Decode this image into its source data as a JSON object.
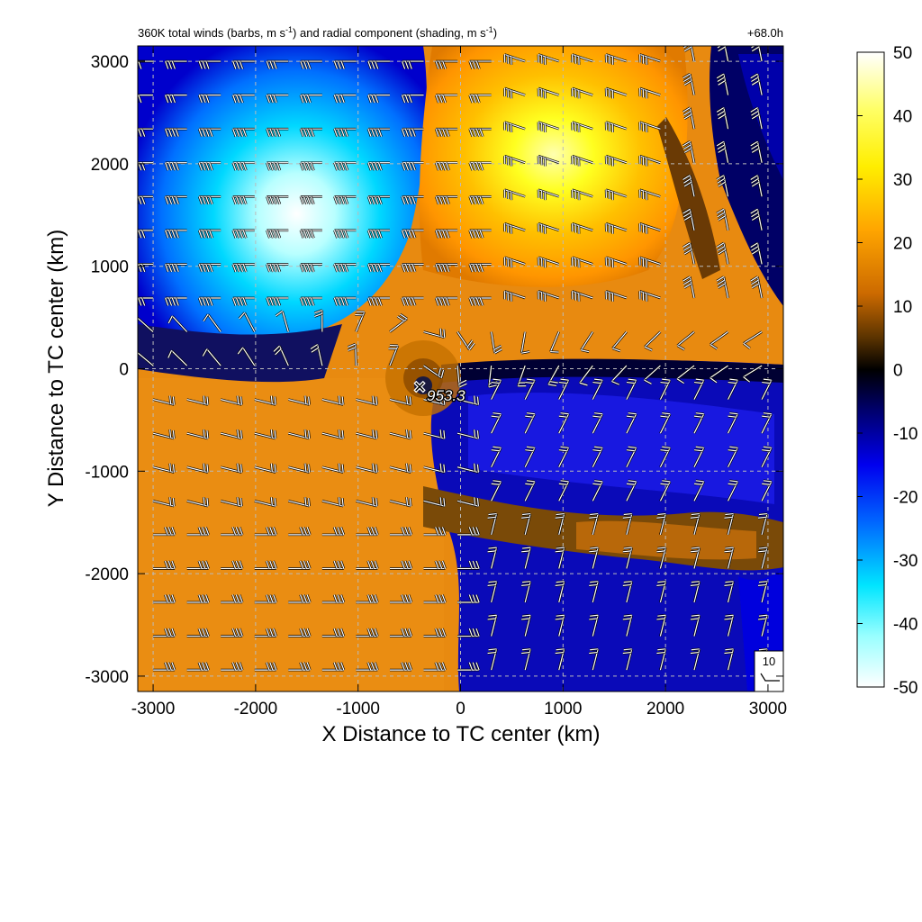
{
  "chart_data": {
    "type": "heatmap",
    "title_parts": {
      "a": "360K total winds (barbs, m s",
      "b": "-1",
      "c": ") and radial component (shading, m s",
      "d": "-1",
      "e": ")"
    },
    "valid_time": "+68.0h",
    "xlabel": "X Distance to TC center (km)",
    "ylabel": "Y Distance to TC center (km)",
    "xlim": [
      -3150,
      3150
    ],
    "ylim": [
      -3150,
      3150
    ],
    "xticks": [
      "-3000",
      "-2000",
      "-1000",
      "0",
      "1000",
      "2000",
      "3000"
    ],
    "yticks": [
      "3000",
      "2000",
      "1000",
      "0",
      "-1000",
      "-2000",
      "-3000"
    ],
    "grid": "dashed",
    "colorbar": {
      "ticks": [
        "50",
        "40",
        "30",
        "20",
        "10",
        "0",
        "-10",
        "-20",
        "-30",
        "-40",
        "-50"
      ],
      "range": [
        -50,
        50
      ],
      "colors": [
        "#ffffff",
        "#00ffff",
        "#0090ff",
        "#0000ff",
        "#000066",
        "#000000",
        "#5a3300",
        "#cc6600",
        "#ff9900",
        "#ffd000",
        "#ffff00",
        "#ffffff"
      ]
    },
    "tc_center": {
      "x": -450,
      "y": -200,
      "pressure_label": "953.3"
    },
    "barb_reference": {
      "label": "10"
    },
    "radial_field_regions": [
      {
        "sign": "negative",
        "description_x": [
          -3150,
          -500
        ],
        "description_y": [
          300,
          3150
        ],
        "peak": -45
      },
      {
        "sign": "positive",
        "description_x": [
          -300,
          2300
        ],
        "description_y": [
          200,
          3150
        ],
        "peak": 45
      },
      {
        "sign": "negative",
        "description_x": [
          -200,
          3150
        ],
        "description_y": [
          -3150,
          100
        ],
        "peak": -15
      },
      {
        "sign": "positive",
        "description_x": [
          -3150,
          -300
        ],
        "description_y": [
          -3150,
          100
        ],
        "peak": 15
      }
    ]
  }
}
